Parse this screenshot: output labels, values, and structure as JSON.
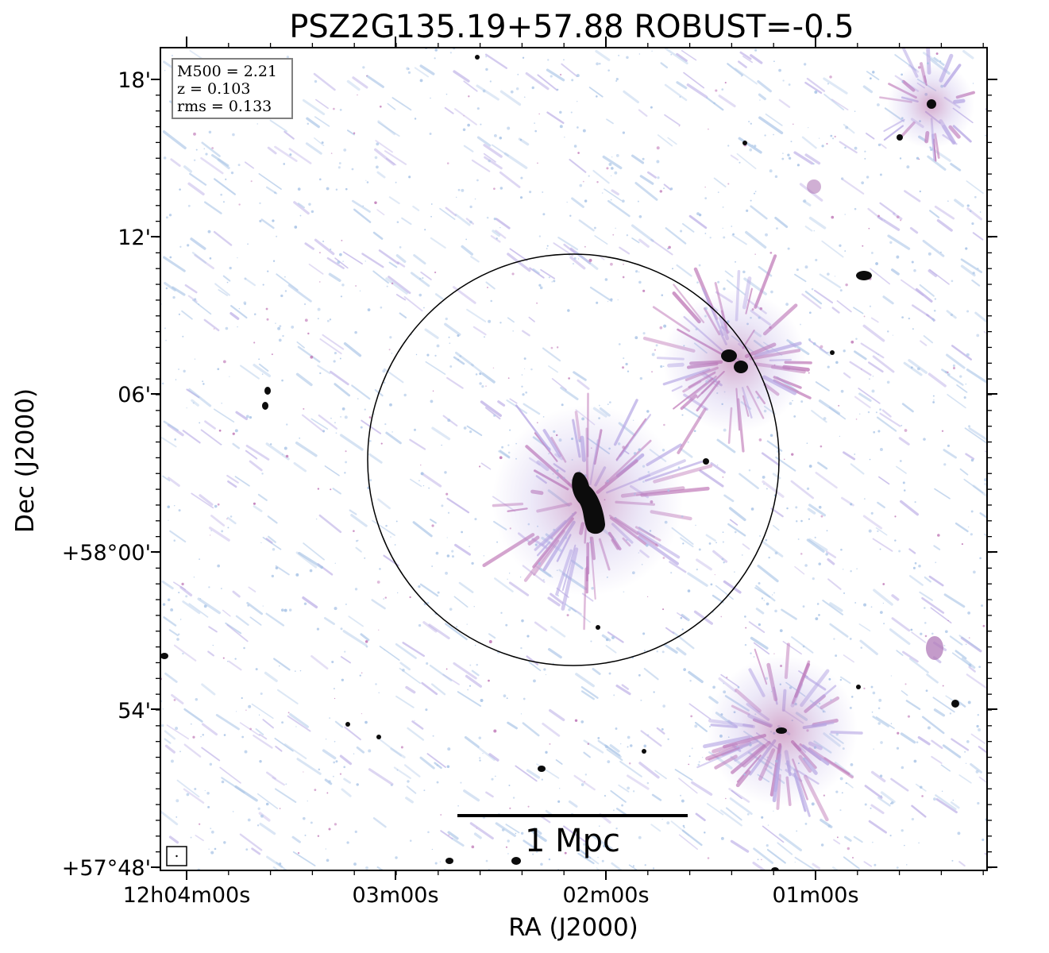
{
  "title": "PSZ2G135.19+57.88 ROBUST=-0.5",
  "info_box": {
    "lines": [
      "M500 = 2.21",
      "z = 0.103",
      "rms = 0.133"
    ]
  },
  "scale_bar": {
    "label": "1 Mpc"
  },
  "axes": {
    "xlabel": "RA (J2000)",
    "ylabel": "Dec (J2000)",
    "x_ticks": [
      "12h04m00s",
      "03m00s",
      "02m00s",
      "01m00s"
    ],
    "y_ticks": [
      "18'",
      "12'",
      "06'",
      "+58°00'",
      "54'",
      "+57°48'"
    ]
  },
  "colors": {
    "faint_emission": "#a9c4e6",
    "mid_emission": "#b7a8e4",
    "strong_emission": "#c07ab8",
    "core": "#0c0c0c",
    "frame": "#000000"
  }
}
